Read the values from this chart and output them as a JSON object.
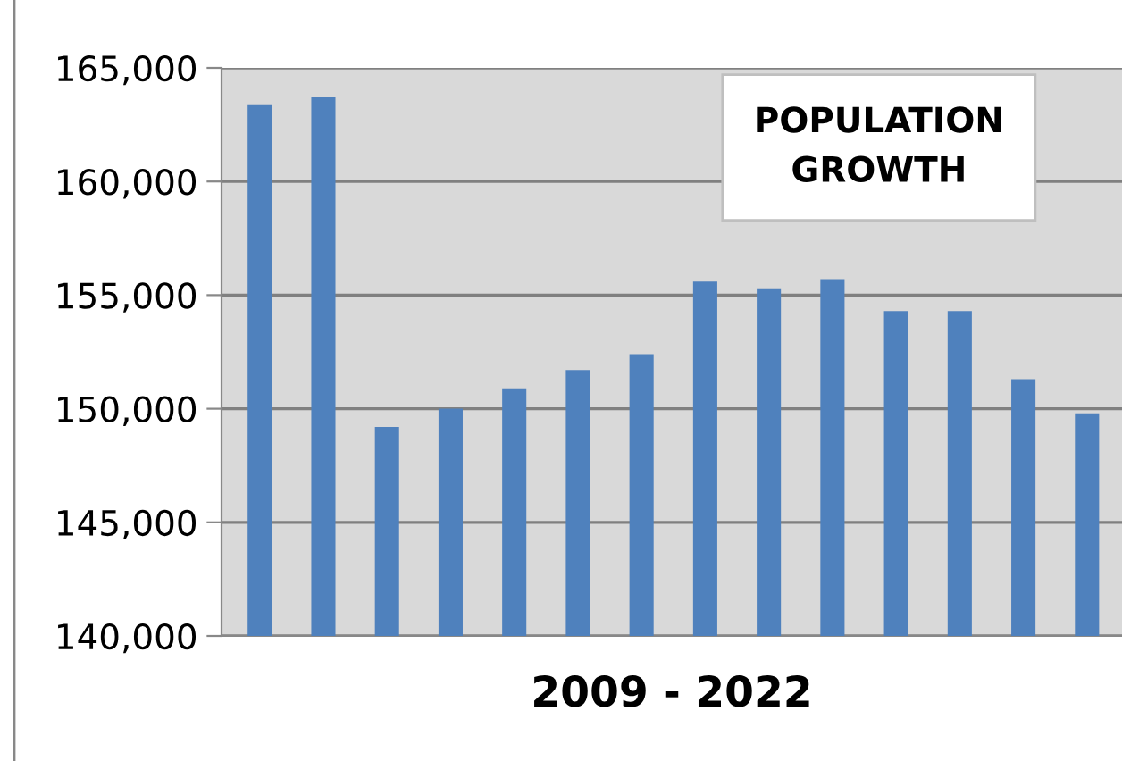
{
  "chart_data": {
    "type": "bar",
    "title": "POPULATION\nGROWTH",
    "xlabel": "2009 - 2022",
    "categories": [
      null,
      null,
      null,
      null,
      null,
      null,
      null,
      null,
      null,
      null,
      null,
      null,
      null,
      null
    ],
    "values": [
      163400,
      163700,
      149200,
      150000,
      150900,
      151700,
      152400,
      155600,
      155300,
      155700,
      154300,
      154300,
      151300,
      149800
    ],
    "color": "#4f81bd",
    "ylim": [
      140000,
      165000
    ],
    "yticks": [
      {
        "value": 140000,
        "label": "140,000"
      },
      {
        "value": 145000,
        "label": "145,000"
      },
      {
        "value": 150000,
        "label": "150,000"
      },
      {
        "value": 155000,
        "label": "155,000"
      },
      {
        "value": 160000,
        "label": "160,000"
      },
      {
        "value": 165000,
        "label": "165,000"
      }
    ],
    "grid": "y",
    "legend": false
  }
}
